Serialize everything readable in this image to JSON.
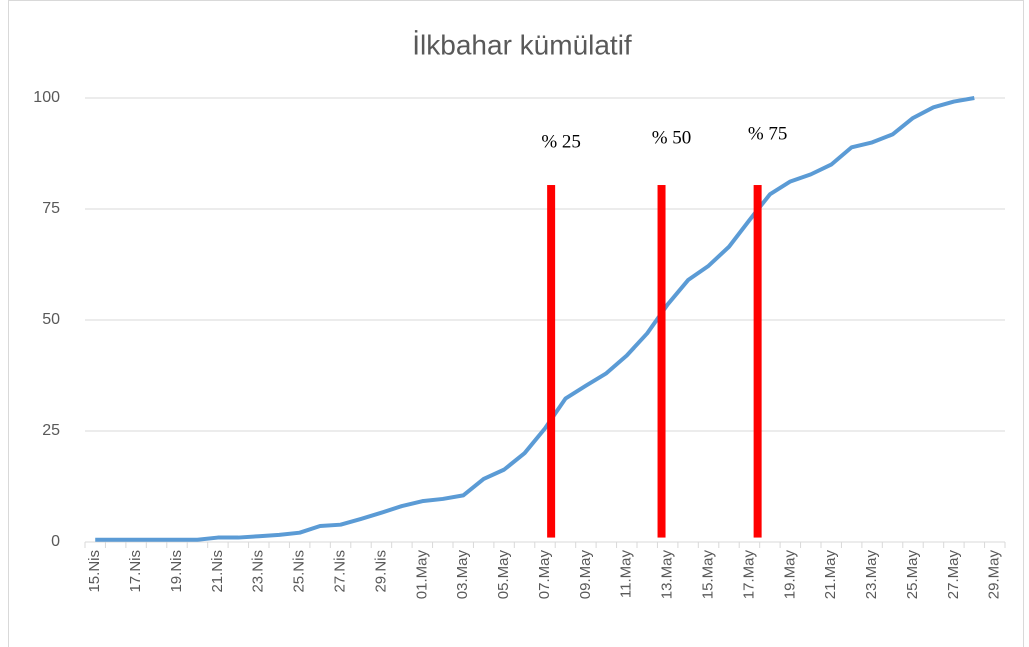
{
  "chart_data": {
    "type": "line",
    "title": "İlkbahar kümülatif",
    "categories": [
      "15.Nis",
      null,
      "17.Nis",
      null,
      "19.Nis",
      null,
      "21.Nis",
      null,
      "23.Nis",
      null,
      "25.Nis",
      null,
      "27.Nis",
      null,
      "29.Nis",
      null,
      "01.May",
      null,
      "03.May",
      null,
      "05.May",
      null,
      "07.May",
      null,
      "09.May",
      null,
      "11.May",
      null,
      "13.May",
      null,
      "15.May",
      null,
      "17.May",
      null,
      "19.May",
      null,
      "21.May",
      null,
      "23.May",
      null,
      "25.May",
      null,
      "27.May",
      null,
      "29.May"
    ],
    "series": [
      {
        "name": "İlkbahar kümülatif",
        "color": "#5b9bd5",
        "values": [
          0.5,
          0.5,
          0.5,
          0.5,
          0.5,
          0.5,
          1,
          1,
          1.3,
          1.6,
          2.1,
          3.6,
          3.9,
          5.2,
          6.6,
          8.1,
          9.2,
          9.7,
          10.5,
          14.2,
          16.3,
          20,
          25.6,
          32.3,
          35.2,
          38,
          42,
          47,
          53.5,
          59,
          62.2,
          66.5,
          72.5,
          78.3,
          81.2,
          82.8,
          85,
          88.9,
          90,
          91.8,
          95.5,
          97.9,
          99.2,
          100,
          null
        ]
      }
    ],
    "annotations": [
      {
        "text": "% 25",
        "x": 22.3,
        "ymin": 1,
        "ymax": 80.4,
        "color": "#ff0000"
      },
      {
        "text": "% 50",
        "x": 27.7,
        "ymin": 1,
        "ymax": 80.4,
        "color": "#ff0000"
      },
      {
        "text": "% 75",
        "x": 32.4,
        "ymin": 1,
        "ymax": 80.4,
        "color": "#ff0000"
      }
    ],
    "ylim": [
      0,
      100
    ],
    "yticks": [
      0,
      25,
      50,
      75,
      100
    ],
    "grid": true
  }
}
